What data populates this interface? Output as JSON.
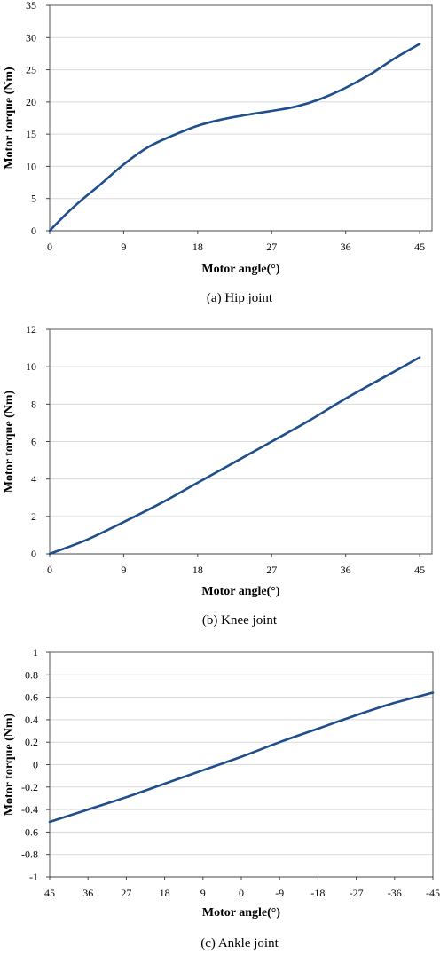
{
  "chart_data": [
    {
      "type": "line",
      "caption": "(a) Hip joint",
      "xlabel": "Motor angle(°)",
      "ylabel": "Motor torque (Nm)",
      "xlim": [
        0,
        46.5
      ],
      "ylim": [
        0,
        35
      ],
      "xticks": [
        "0",
        "9",
        "18",
        "27",
        "36",
        "45"
      ],
      "xtick_values": [
        0,
        9,
        18,
        27,
        36,
        45
      ],
      "yticks": [
        "0",
        "5",
        "10",
        "15",
        "20",
        "25",
        "30",
        "35"
      ],
      "ytick_values": [
        0,
        5,
        10,
        15,
        20,
        25,
        30,
        35
      ],
      "grid": true,
      "series": [
        {
          "color": "#1f4e8c",
          "x": [
            0,
            2,
            4,
            6,
            9,
            12,
            15,
            18,
            21,
            24,
            27,
            30,
            33,
            36,
            39,
            42,
            45
          ],
          "y": [
            0,
            2.6,
            4.9,
            7.0,
            10.3,
            13.0,
            14.8,
            16.3,
            17.3,
            18.0,
            18.6,
            19.3,
            20.5,
            22.2,
            24.3,
            26.8,
            29.0
          ]
        }
      ]
    },
    {
      "type": "line",
      "caption": "(b) Knee joint",
      "xlabel": "Motor angle(°)",
      "ylabel": "Motor torque (Nm)",
      "xlim": [
        0,
        46.5
      ],
      "ylim": [
        0,
        12
      ],
      "xticks": [
        "0",
        "9",
        "18",
        "27",
        "36",
        "45"
      ],
      "xtick_values": [
        0,
        9,
        18,
        27,
        36,
        45
      ],
      "yticks": [
        "0",
        "2",
        "4",
        "6",
        "8",
        "10",
        "12"
      ],
      "ytick_values": [
        0,
        2,
        4,
        6,
        8,
        10,
        12
      ],
      "grid": true,
      "series": [
        {
          "color": "#1f4e8c",
          "x": [
            0,
            4.5,
            9,
            13.5,
            18,
            22.5,
            27,
            31.5,
            36,
            40.5,
            45
          ],
          "y": [
            0,
            0.75,
            1.7,
            2.7,
            3.8,
            4.9,
            6.0,
            7.1,
            8.3,
            9.4,
            10.5
          ]
        }
      ]
    },
    {
      "type": "line",
      "caption": "(c) Ankle joint",
      "xlabel": "Motor angle(°)",
      "ylabel": "Motor torque (Nm)",
      "xlim": [
        45,
        -45
      ],
      "ylim": [
        -1,
        1
      ],
      "xticks": [
        "45",
        "36",
        "27",
        "18",
        "9",
        "0",
        "-9",
        "-18",
        "-27",
        "-36",
        "-45"
      ],
      "xtick_values": [
        45,
        36,
        27,
        18,
        9,
        0,
        -9,
        -18,
        -27,
        -36,
        -45
      ],
      "yticks": [
        "-1",
        "-0.8",
        "-0.6",
        "-0.4",
        "-0.2",
        "0",
        "0.2",
        "0.4",
        "0.6",
        "0.8",
        "1"
      ],
      "ytick_values": [
        -1,
        -0.8,
        -0.6,
        -0.4,
        -0.2,
        0,
        0.2,
        0.4,
        0.6,
        0.8,
        1
      ],
      "grid": true,
      "series": [
        {
          "color": "#1f4e8c",
          "x": [
            45,
            36,
            27,
            18,
            9,
            0,
            -9,
            -18,
            -27,
            -36,
            -45
          ],
          "y": [
            -0.51,
            -0.4,
            -0.29,
            -0.17,
            -0.05,
            0.07,
            0.2,
            0.32,
            0.44,
            0.55,
            0.64
          ]
        }
      ]
    }
  ]
}
